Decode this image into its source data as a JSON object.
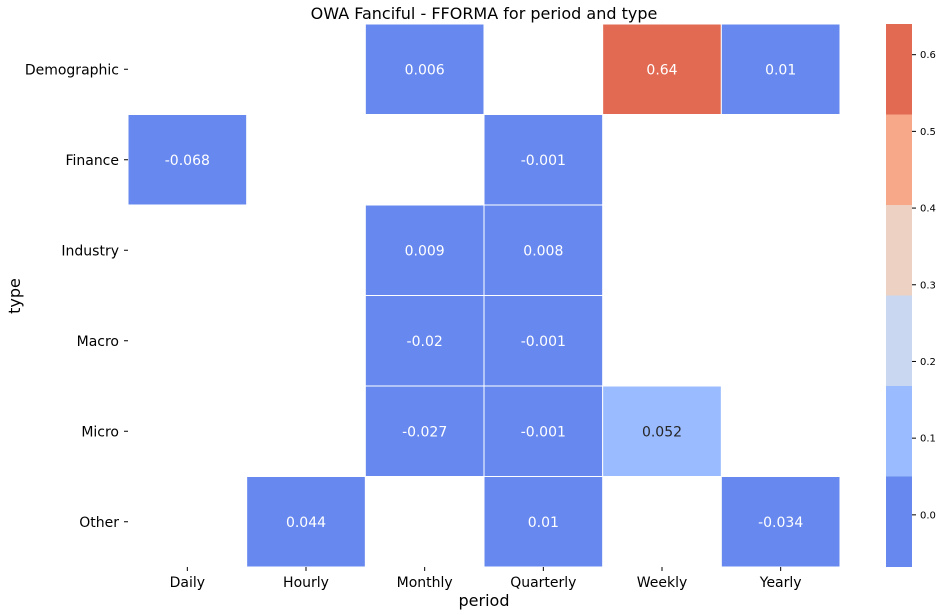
{
  "chart_data": {
    "type": "heatmap",
    "title": "OWA Fanciful - FFORMA for period and type",
    "xlabel": "period",
    "ylabel": "type",
    "x_categories": [
      "Daily",
      "Hourly",
      "Monthly",
      "Quarterly",
      "Weekly",
      "Yearly"
    ],
    "y_categories": [
      "Demographic",
      "Finance",
      "Industry",
      "Macro",
      "Micro",
      "Other"
    ],
    "values": [
      [
        null,
        null,
        0.006,
        null,
        0.64,
        0.01
      ],
      [
        -0.068,
        null,
        null,
        -0.001,
        null,
        null
      ],
      [
        null,
        null,
        0.009,
        0.008,
        null,
        null
      ],
      [
        null,
        null,
        -0.02,
        -0.001,
        null,
        null
      ],
      [
        null,
        null,
        -0.027,
        -0.001,
        0.052,
        null
      ],
      [
        null,
        0.044,
        null,
        0.01,
        null,
        -0.034
      ]
    ],
    "cell_labels": [
      [
        null,
        null,
        "0.006",
        null,
        "0.64",
        "0.01"
      ],
      [
        "-0.068",
        null,
        null,
        "-0.001",
        null,
        null
      ],
      [
        null,
        null,
        "0.009",
        "0.008",
        null,
        null
      ],
      [
        null,
        null,
        "-0.02",
        "-0.001",
        null,
        null
      ],
      [
        null,
        null,
        "-0.027",
        "-0.001",
        "0.052",
        null
      ],
      [
        null,
        "0.044",
        null,
        "0.01",
        null,
        "-0.034"
      ]
    ],
    "colorbar": {
      "range": [
        -0.068,
        0.64
      ],
      "ticks": [
        "0.0",
        "0.1",
        "0.2",
        "0.3",
        "0.4",
        "0.5",
        "0.6"
      ],
      "tick_values": [
        0.0,
        0.1,
        0.2,
        0.3,
        0.4,
        0.5,
        0.6
      ],
      "bins": [
        {
          "from": -0.068,
          "to": 0.05,
          "color": "#6788ee"
        },
        {
          "from": 0.05,
          "to": 0.168,
          "color": "#9abbff"
        },
        {
          "from": 0.168,
          "to": 0.286,
          "color": "#c9d7f0"
        },
        {
          "from": 0.286,
          "to": 0.404,
          "color": "#edd1c2"
        },
        {
          "from": 0.404,
          "to": 0.522,
          "color": "#f7a889"
        },
        {
          "from": 0.522,
          "to": 0.64,
          "color": "#e26952"
        }
      ]
    },
    "grid": false,
    "legend": "colorbar-right"
  }
}
